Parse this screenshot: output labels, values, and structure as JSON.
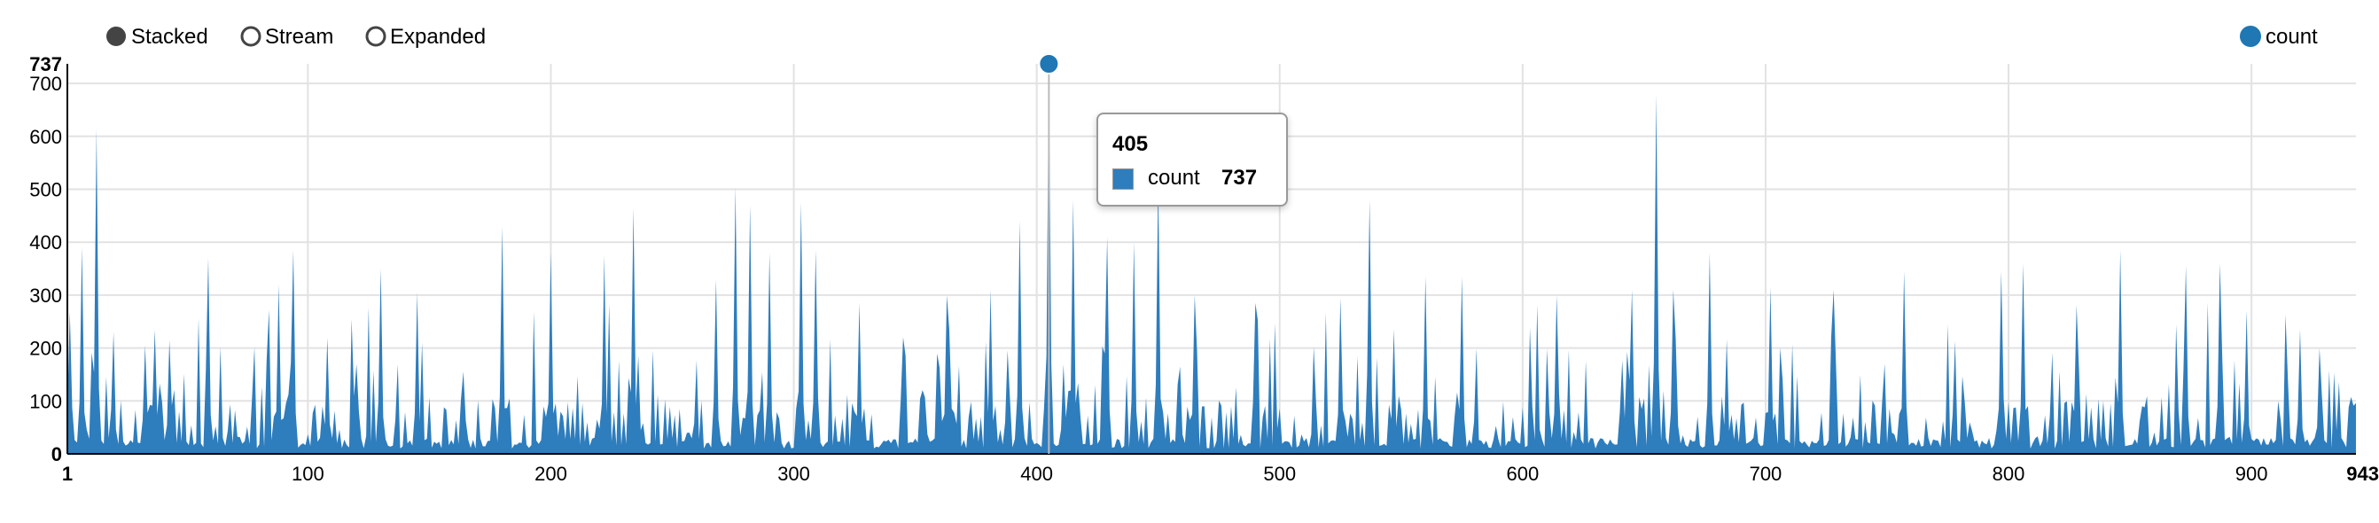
{
  "controls": {
    "options": [
      "Stacked",
      "Stream",
      "Expanded"
    ],
    "selected": "Stacked"
  },
  "legend": {
    "entries": [
      {
        "name": "count",
        "color": "#1f77b4"
      }
    ]
  },
  "tooltip": {
    "x": "405",
    "series": "count",
    "value": "737"
  },
  "chart_data": {
    "type": "area",
    "series": [
      {
        "name": "count",
        "color": "#2e7dbd"
      }
    ],
    "x_range": [
      1,
      943
    ],
    "y_range": [
      0,
      737
    ],
    "x_ticks": [
      1,
      100,
      200,
      300,
      400,
      500,
      600,
      700,
      800,
      900,
      943
    ],
    "y_ticks": [
      0,
      100,
      200,
      300,
      400,
      500,
      600,
      700,
      737
    ],
    "grid": true,
    "legend_position": "top-right",
    "spikes": [
      {
        "x": 7,
        "y": 390
      },
      {
        "x": 13,
        "y": 615
      },
      {
        "x": 20,
        "y": 230
      },
      {
        "x": 43,
        "y": 215
      },
      {
        "x": 59,
        "y": 370
      },
      {
        "x": 88,
        "y": 320
      },
      {
        "x": 94,
        "y": 385
      },
      {
        "x": 108,
        "y": 220
      },
      {
        "x": 120,
        "y": 170
      },
      {
        "x": 130,
        "y": 350
      },
      {
        "x": 145,
        "y": 305
      },
      {
        "x": 180,
        "y": 430
      },
      {
        "x": 200,
        "y": 380
      },
      {
        "x": 222,
        "y": 375
      },
      {
        "x": 234,
        "y": 465
      },
      {
        "x": 268,
        "y": 330
      },
      {
        "x": 276,
        "y": 505
      },
      {
        "x": 282,
        "y": 470
      },
      {
        "x": 290,
        "y": 380
      },
      {
        "x": 303,
        "y": 475
      },
      {
        "x": 309,
        "y": 385
      },
      {
        "x": 327,
        "y": 285
      },
      {
        "x": 363,
        "y": 300
      },
      {
        "x": 381,
        "y": 310
      },
      {
        "x": 393,
        "y": 440
      },
      {
        "x": 405,
        "y": 737
      },
      {
        "x": 415,
        "y": 480
      },
      {
        "x": 429,
        "y": 410
      },
      {
        "x": 440,
        "y": 400
      },
      {
        "x": 450,
        "y": 520
      },
      {
        "x": 465,
        "y": 300
      },
      {
        "x": 490,
        "y": 285
      },
      {
        "x": 525,
        "y": 295
      },
      {
        "x": 537,
        "y": 480
      },
      {
        "x": 560,
        "y": 335
      },
      {
        "x": 575,
        "y": 335
      },
      {
        "x": 614,
        "y": 300
      },
      {
        "x": 645,
        "y": 310
      },
      {
        "x": 655,
        "y": 680
      },
      {
        "x": 662,
        "y": 310
      },
      {
        "x": 677,
        "y": 380
      },
      {
        "x": 702,
        "y": 315
      },
      {
        "x": 728,
        "y": 310
      },
      {
        "x": 757,
        "y": 345
      },
      {
        "x": 797,
        "y": 345
      },
      {
        "x": 806,
        "y": 360
      },
      {
        "x": 846,
        "y": 385
      },
      {
        "x": 873,
        "y": 355
      },
      {
        "x": 887,
        "y": 360
      },
      {
        "x": 898,
        "y": 270
      },
      {
        "x": 920,
        "y": 235
      },
      {
        "x": 928,
        "y": 200
      }
    ]
  }
}
